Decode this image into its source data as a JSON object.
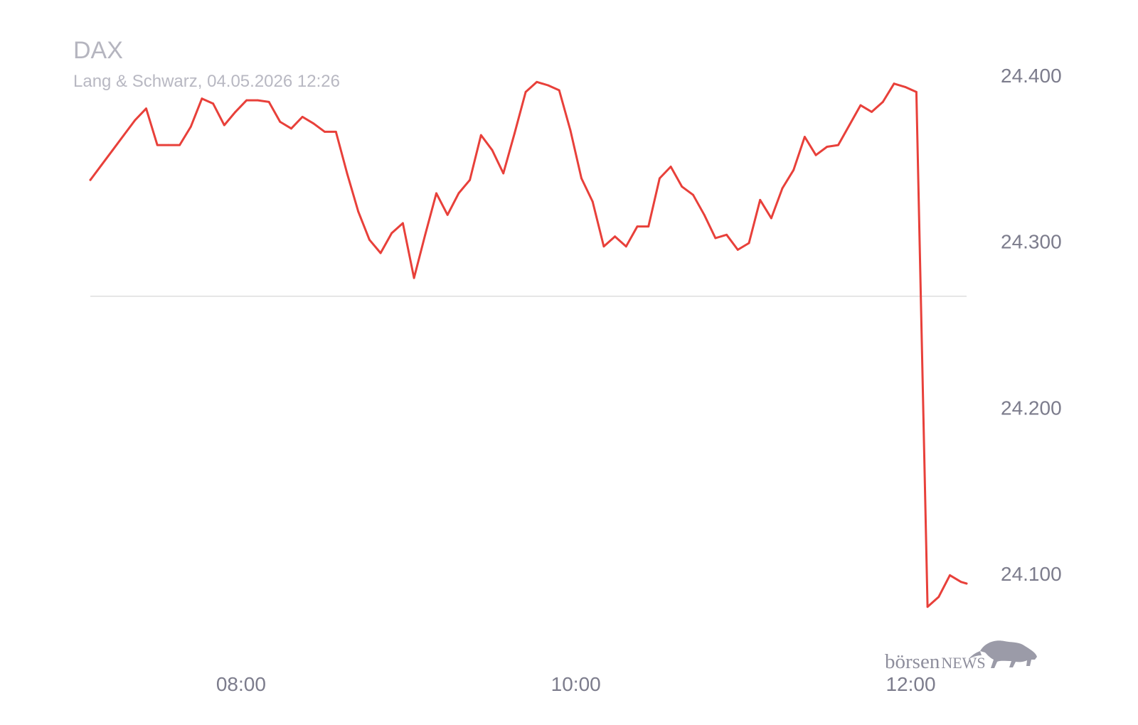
{
  "chart_data": {
    "type": "line",
    "title": "DAX",
    "subtitle": "Lang & Schwarz, 04.05.2026 12:26",
    "xlabel": "",
    "ylabel": "",
    "x_ticks": [
      "08:00",
      "10:00",
      "12:00"
    ],
    "y_ticks": [
      "24.400",
      "24.300",
      "24.200",
      "24.100"
    ],
    "ylim": [
      24062,
      24419
    ],
    "xlim": [
      "07:06",
      "12:20"
    ],
    "grid": false,
    "legend": "none",
    "line_color": "#e8403a",
    "reference_line": {
      "value": 24267,
      "color": "#dedede"
    },
    "series": [
      {
        "x": [
          "07:06",
          "07:10",
          "07:14",
          "07:18",
          "07:22",
          "07:26",
          "07:30",
          "07:34",
          "07:38",
          "07:42",
          "07:46",
          "07:50",
          "07:54",
          "07:58",
          "08:02",
          "08:06",
          "08:10",
          "08:14",
          "08:18",
          "08:22",
          "08:26",
          "08:30",
          "08:34",
          "08:38",
          "08:42",
          "08:46",
          "08:50",
          "08:54",
          "08:58",
          "09:02",
          "09:06",
          "09:10",
          "09:14",
          "09:18",
          "09:22",
          "09:26",
          "09:30",
          "09:34",
          "09:38",
          "09:42",
          "09:46",
          "09:50",
          "09:54",
          "09:58",
          "10:02",
          "10:06",
          "10:10",
          "10:14",
          "10:18",
          "10:22",
          "10:26",
          "10:30",
          "10:34",
          "10:38",
          "10:42",
          "10:46",
          "10:50",
          "10:54",
          "10:58",
          "11:02",
          "11:06",
          "11:10",
          "11:14",
          "11:18",
          "11:22",
          "11:26",
          "11:30",
          "11:34",
          "11:38",
          "11:42",
          "11:46",
          "11:50",
          "11:54",
          "11:58",
          "12:02",
          "12:06",
          "12:10",
          "12:14",
          "12:18",
          "12:20"
        ],
        "values": [
          24337,
          24346,
          24355,
          24364,
          24373,
          24380,
          24358,
          24358,
          24358,
          24369,
          24386,
          24383,
          24370,
          24378,
          24385,
          24385,
          24384,
          24372,
          24368,
          24375,
          24371,
          24366,
          24366,
          24341,
          24318,
          24301,
          24293,
          24305,
          24311,
          24278,
          24304,
          24329,
          24316,
          24329,
          24337,
          24364,
          24355,
          24341,
          24365,
          24390,
          24396,
          24394,
          24391,
          24367,
          24338,
          24324,
          24297,
          24303,
          24297,
          24309,
          24309,
          24338,
          24345,
          24333,
          24328,
          24316,
          24302,
          24304,
          24295,
          24299,
          24325,
          24314,
          24332,
          24343,
          24363,
          24352,
          24357,
          24358,
          24370,
          24382,
          24378,
          24384,
          24395,
          24393,
          24390,
          24080,
          24086,
          24099,
          24095,
          24094
        ]
      }
    ]
  },
  "watermark": {
    "text_regular": "börsen",
    "text_caps": "NEWS",
    "icon": "bull-icon"
  }
}
